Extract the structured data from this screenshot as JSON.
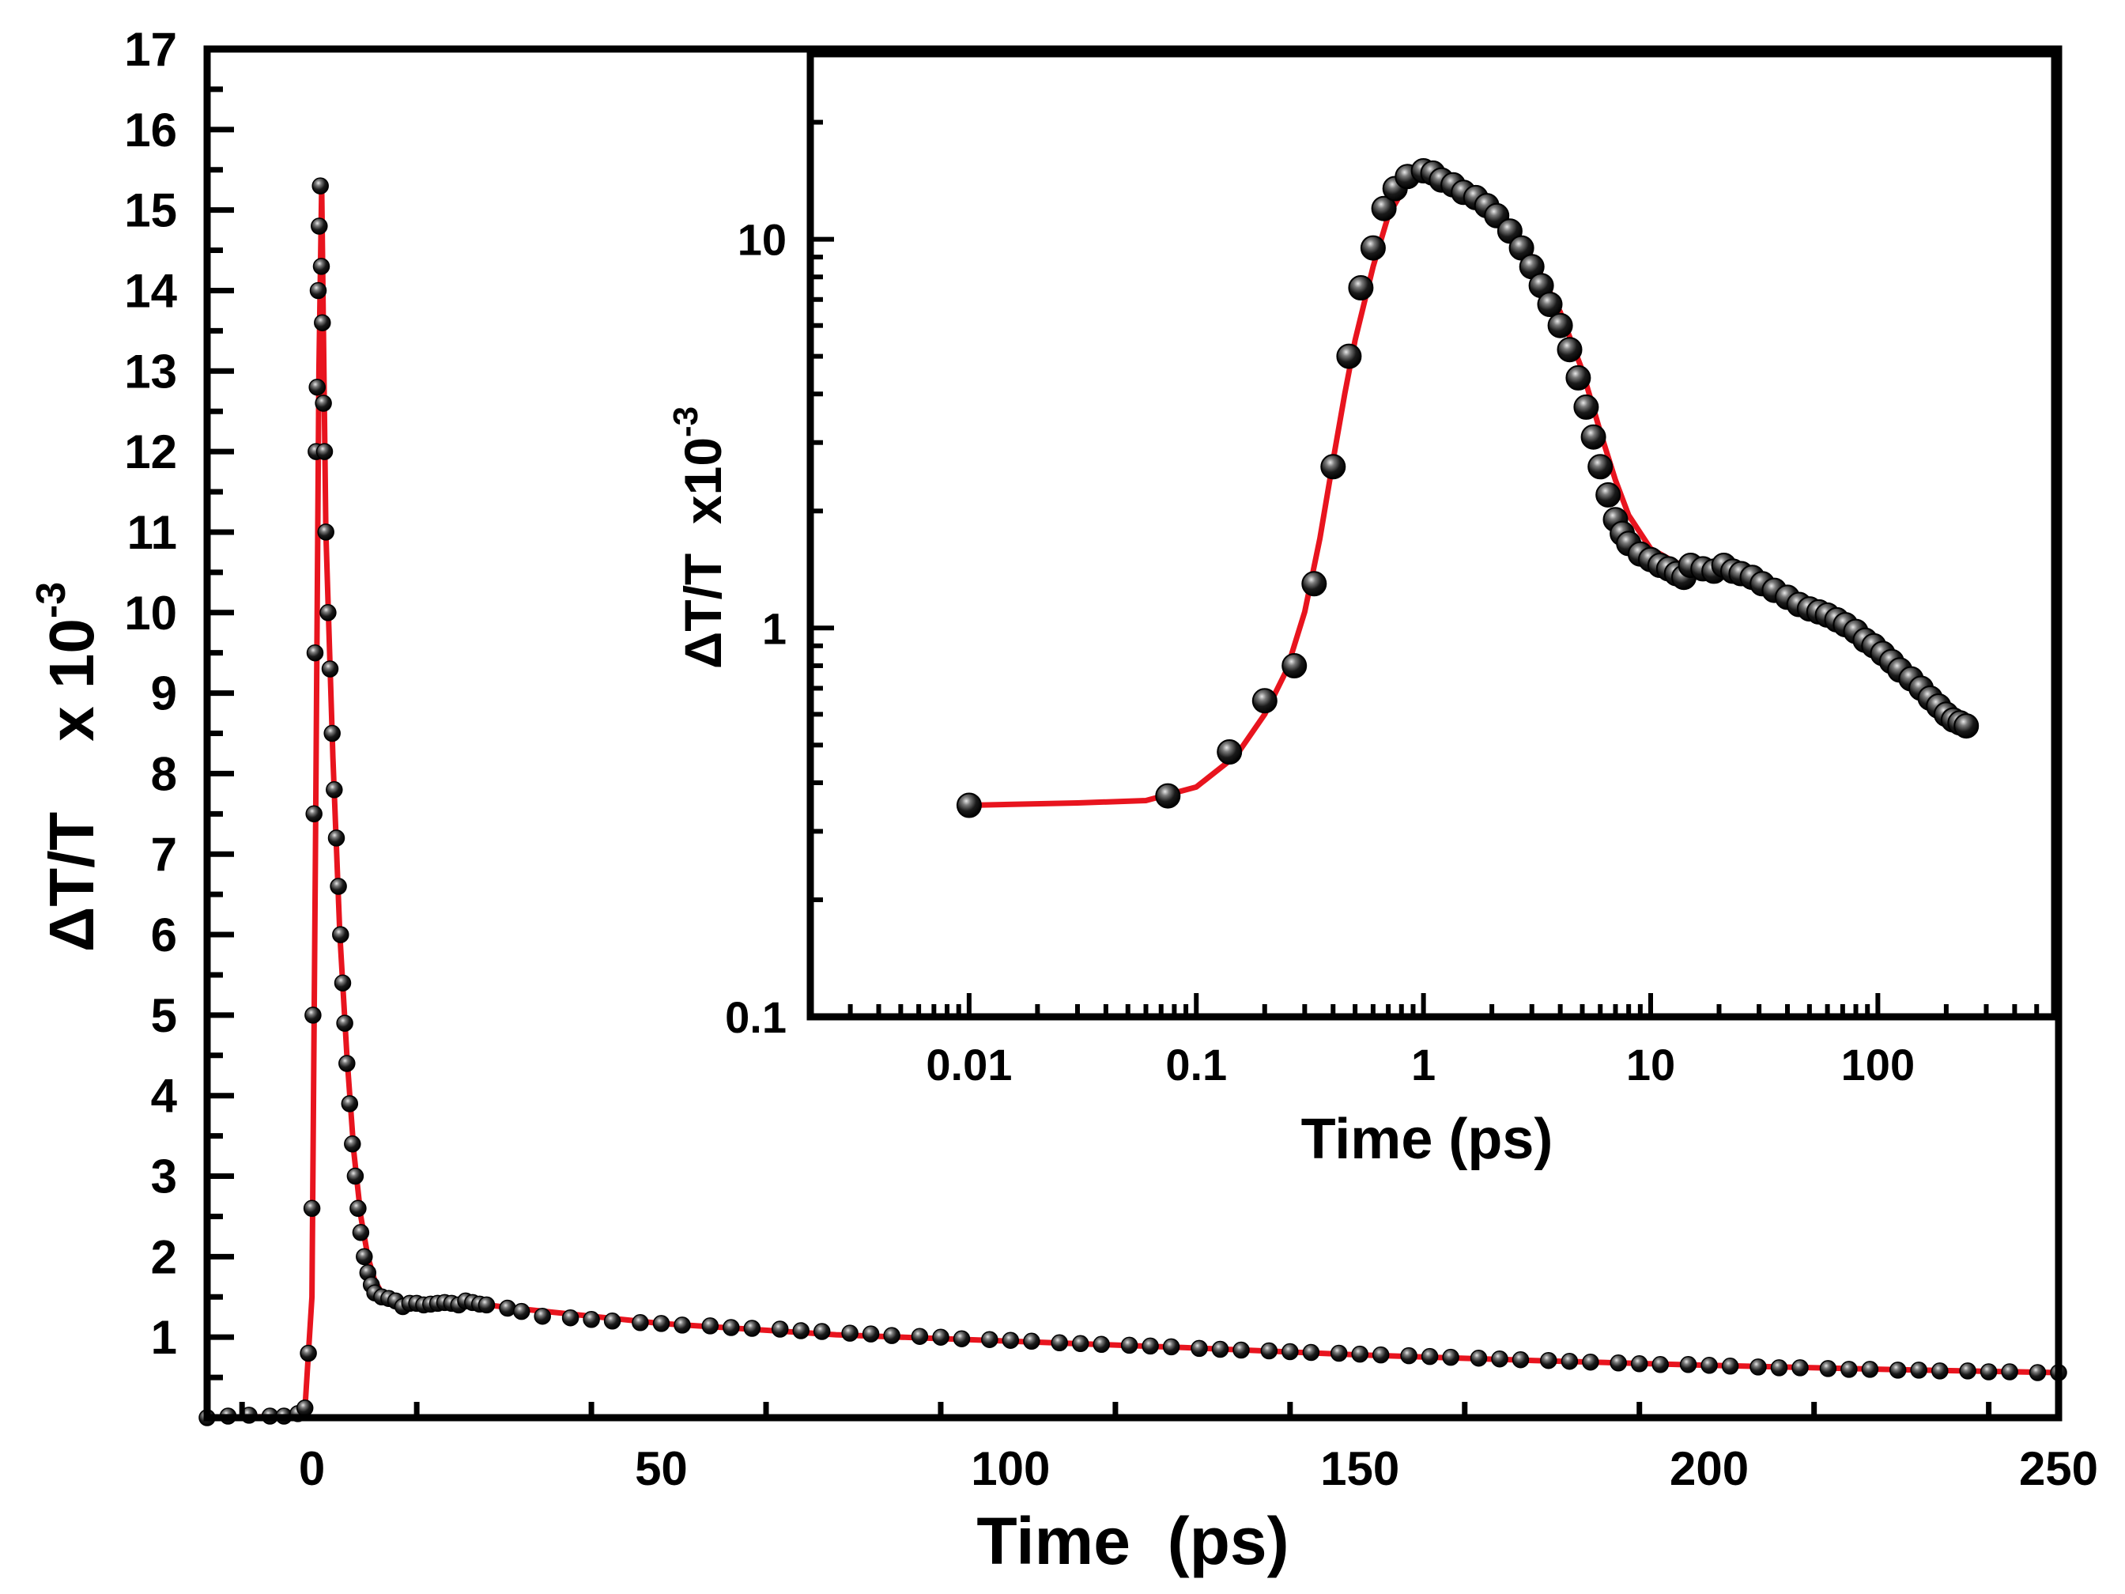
{
  "chart_data": [
    {
      "id": "main",
      "type": "line",
      "xlabel": "Time  (ps)",
      "ylabel": "ΔT/T    x 10",
      "ylabel_exponent": "-3",
      "xlim": [
        -15,
        250
      ],
      "ylim": [
        0,
        17
      ],
      "x_ticks": [
        "0",
        "50",
        "100",
        "150",
        "200",
        "250"
      ],
      "y_ticks": [
        "1",
        "2",
        "3",
        "4",
        "5",
        "6",
        "7",
        "8",
        "9",
        "10",
        "11",
        "12",
        "13",
        "14",
        "15",
        "16",
        "17"
      ],
      "grid": false,
      "legend": "none",
      "series": [
        {
          "role": "measured data",
          "style": "black spheres",
          "x": [
            -15,
            -12,
            -9,
            -6,
            -4,
            -2,
            -1,
            -0.5,
            0,
            0.15,
            0.3,
            0.45,
            0.6,
            0.75,
            0.9,
            1.05,
            1.2,
            1.35,
            1.5,
            1.65,
            1.8,
            2.0,
            2.3,
            2.6,
            2.9,
            3.2,
            3.5,
            3.8,
            4.1,
            4.4,
            4.7,
            5.0,
            5.4,
            5.8,
            6.2,
            6.6,
            7.0,
            7.5,
            8.0,
            8.5,
            9.0,
            10,
            11,
            12,
            13,
            14,
            15,
            16,
            17,
            18,
            19,
            20,
            21,
            22,
            23,
            24,
            25,
            28,
            30,
            33,
            37,
            40,
            43,
            47,
            50,
            53,
            57,
            60,
            63,
            67,
            70,
            73,
            77,
            80,
            83,
            87,
            90,
            93,
            97,
            100,
            103,
            107,
            110,
            113,
            117,
            120,
            123,
            127,
            130,
            133,
            137,
            140,
            143,
            147,
            150,
            153,
            157,
            160,
            163,
            167,
            170,
            173,
            177,
            180,
            183,
            187,
            190,
            193,
            197,
            200,
            203,
            207,
            210,
            213,
            217,
            220,
            223,
            227,
            230,
            233,
            237,
            240,
            243,
            247,
            250
          ],
          "y": [
            0.0,
            0.02,
            0.03,
            0.02,
            0.02,
            0.05,
            0.12,
            0.8,
            2.6,
            5.0,
            7.5,
            9.5,
            12.0,
            12.8,
            14.0,
            14.8,
            15.3,
            14.3,
            13.6,
            12.6,
            12.0,
            11.0,
            10.0,
            9.3,
            8.5,
            7.8,
            7.2,
            6.6,
            6.0,
            5.4,
            4.9,
            4.4,
            3.9,
            3.4,
            3.0,
            2.6,
            2.3,
            2.0,
            1.8,
            1.65,
            1.55,
            1.5,
            1.48,
            1.45,
            1.38,
            1.42,
            1.42,
            1.4,
            1.41,
            1.42,
            1.43,
            1.42,
            1.4,
            1.45,
            1.43,
            1.41,
            1.4,
            1.36,
            1.32,
            1.26,
            1.24,
            1.22,
            1.2,
            1.18,
            1.17,
            1.15,
            1.14,
            1.12,
            1.11,
            1.1,
            1.08,
            1.07,
            1.05,
            1.04,
            1.02,
            1.01,
            1.0,
            0.98,
            0.97,
            0.96,
            0.95,
            0.93,
            0.92,
            0.91,
            0.9,
            0.89,
            0.88,
            0.86,
            0.85,
            0.84,
            0.83,
            0.82,
            0.81,
            0.8,
            0.79,
            0.78,
            0.77,
            0.76,
            0.75,
            0.74,
            0.73,
            0.72,
            0.71,
            0.7,
            0.69,
            0.68,
            0.67,
            0.66,
            0.66,
            0.65,
            0.64,
            0.63,
            0.62,
            0.62,
            0.61,
            0.6,
            0.6,
            0.59,
            0.59,
            0.58,
            0.58,
            0.57,
            0.57,
            0.56,
            0.56
          ]
        },
        {
          "role": "fit",
          "style": "red line",
          "color": "#e8141e",
          "x": [
            -15,
            -2,
            -1,
            0,
            0.5,
            1.0,
            1.4,
            2,
            3,
            4,
            5,
            6,
            7,
            8,
            9,
            10,
            12,
            15,
            20,
            25,
            30,
            50,
            75,
            100,
            125,
            150,
            175,
            200,
            225,
            250
          ],
          "y": [
            0.0,
            0.02,
            0.1,
            1.5,
            7.0,
            13.0,
            15.3,
            11.0,
            8.2,
            6.0,
            4.5,
            3.3,
            2.5,
            2.0,
            1.7,
            1.55,
            1.47,
            1.43,
            1.42,
            1.4,
            1.35,
            1.17,
            1.03,
            0.95,
            0.87,
            0.78,
            0.71,
            0.65,
            0.6,
            0.56
          ]
        }
      ]
    },
    {
      "id": "inset",
      "type": "line",
      "x_scale": "log",
      "y_scale": "log",
      "xlabel": "Time (ps)",
      "ylabel": "ΔT/T  x10",
      "ylabel_exponent": "-3",
      "xlim": [
        0.002,
        600
      ],
      "ylim": [
        0.1,
        30
      ],
      "x_ticks": [
        "0.01",
        "0.1",
        "1",
        "10",
        "100"
      ],
      "y_ticks": [
        "0.1",
        "1",
        "10"
      ],
      "grid": false,
      "legend": "none",
      "series": [
        {
          "role": "measured data",
          "style": "black spheres",
          "x": [
            0.01,
            0.075,
            0.14,
            0.2,
            0.27,
            0.33,
            0.4,
            0.47,
            0.53,
            0.6,
            0.67,
            0.75,
            0.85,
            1.0,
            1.1,
            1.2,
            1.35,
            1.5,
            1.7,
            1.9,
            2.1,
            2.4,
            2.7,
            3.0,
            3.3,
            3.6,
            4.0,
            4.4,
            4.8,
            5.2,
            5.6,
            6.0,
            6.5,
            7.0,
            7.5,
            8.0,
            9.0,
            10,
            11,
            12,
            13,
            14,
            15,
            17,
            19,
            21,
            23,
            25,
            28,
            31,
            35,
            40,
            45,
            50,
            55,
            60,
            66,
            72,
            80,
            88,
            96,
            105,
            115,
            125,
            140,
            155,
            170,
            185,
            200,
            215,
            230,
            245
          ],
          "y": [
            0.35,
            0.37,
            0.48,
            0.65,
            0.8,
            1.3,
            2.6,
            5.0,
            7.5,
            9.5,
            12.0,
            13.5,
            14.5,
            15.0,
            14.8,
            14.2,
            13.8,
            13.2,
            12.8,
            12.2,
            11.5,
            10.5,
            9.5,
            8.5,
            7.6,
            6.8,
            6.0,
            5.2,
            4.4,
            3.7,
            3.1,
            2.6,
            2.2,
            1.9,
            1.75,
            1.65,
            1.55,
            1.5,
            1.45,
            1.42,
            1.38,
            1.35,
            1.45,
            1.42,
            1.4,
            1.45,
            1.4,
            1.38,
            1.35,
            1.3,
            1.25,
            1.2,
            1.15,
            1.12,
            1.1,
            1.08,
            1.05,
            1.02,
            0.98,
            0.93,
            0.9,
            0.86,
            0.82,
            0.78,
            0.74,
            0.7,
            0.66,
            0.63,
            0.6,
            0.58,
            0.57,
            0.56
          ]
        },
        {
          "role": "fit",
          "style": "red line",
          "color": "#e8141e",
          "x": [
            0.01,
            0.03,
            0.06,
            0.1,
            0.15,
            0.2,
            0.25,
            0.3,
            0.35,
            0.4,
            0.45,
            0.5,
            0.6,
            0.7,
            0.85,
            1.0,
            1.3,
            1.6,
            2.0,
            2.5,
            3.0,
            4.0,
            5.0,
            6.0,
            7.0,
            8.0,
            10,
            13,
            20,
            30,
            50,
            80,
            120,
            180,
            245
          ],
          "y": [
            0.35,
            0.355,
            0.36,
            0.39,
            0.47,
            0.6,
            0.78,
            1.1,
            1.7,
            2.7,
            4.0,
            5.5,
            8.5,
            11.5,
            14.0,
            15.0,
            14.0,
            13.0,
            11.8,
            10.3,
            9.0,
            6.5,
            4.6,
            3.2,
            2.4,
            1.95,
            1.6,
            1.47,
            1.42,
            1.35,
            1.18,
            1.0,
            0.85,
            0.68,
            0.56
          ]
        }
      ]
    }
  ]
}
